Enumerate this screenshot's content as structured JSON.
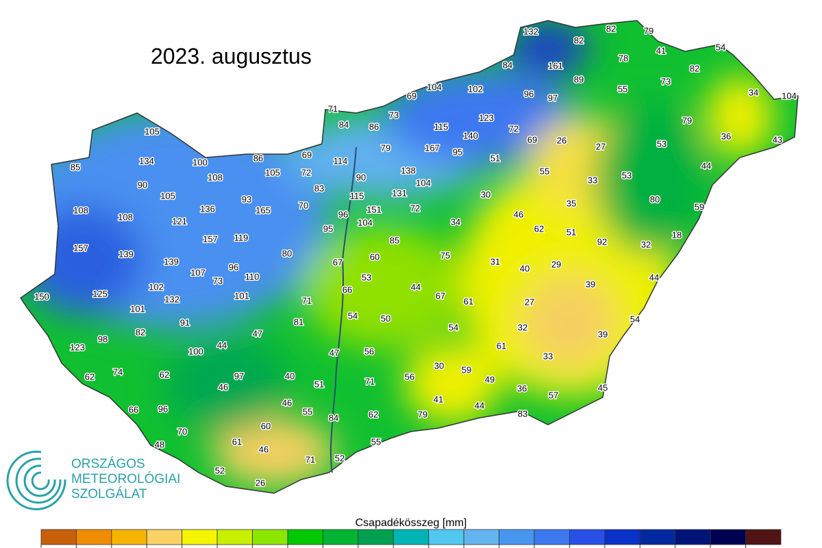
{
  "title": "2023. augusztus",
  "stations": [
    132,
    82,
    79,
    82,
    54,
    41,
    78,
    84,
    161,
    82,
    104,
    102,
    89,
    96,
    97,
    55,
    73,
    34,
    104,
    69,
    71,
    73,
    123,
    84,
    86,
    115,
    140,
    72,
    79,
    105,
    69,
    26,
    27,
    53,
    36,
    43,
    79,
    167,
    95,
    51,
    134,
    100,
    86,
    69,
    114,
    85,
    55,
    53,
    44,
    108,
    105,
    72,
    90,
    138,
    104,
    33,
    90,
    83,
    131,
    30,
    80,
    105,
    93,
    115,
    35,
    59,
    108,
    136,
    165,
    70,
    151,
    72,
    108,
    121,
    96,
    104,
    34,
    46,
    62,
    51,
    92,
    18,
    157,
    157,
    119,
    95,
    85,
    32,
    139,
    80,
    60,
    75,
    31,
    40,
    29,
    139,
    96,
    67,
    107,
    73,
    110,
    53,
    44,
    39,
    44,
    102,
    125,
    66,
    67,
    61,
    27,
    150,
    132,
    101,
    71,
    101,
    54,
    50,
    54,
    32,
    54,
    91,
    81,
    82,
    47,
    39,
    98,
    123,
    100,
    44,
    47,
    56,
    61,
    33,
    30,
    59,
    74,
    62,
    62,
    97,
    40,
    71,
    56,
    49,
    46,
    51,
    36,
    57,
    45,
    41,
    46,
    55,
    66,
    96,
    84,
    62,
    79,
    44,
    83,
    60,
    70,
    61,
    55,
    48,
    46,
    71,
    52,
    52,
    26
  ],
  "legend": {
    "title": "Csapadékösszeg [mm]",
    "colors": [
      "#c8600a",
      "#f08c00",
      "#f5b400",
      "#fad264",
      "#f5f500",
      "#c8f000",
      "#8ce600",
      "#00c800",
      "#00b432",
      "#00a050",
      "#00b4b4",
      "#50c8f0",
      "#64b4f0",
      "#4696f0",
      "#3c78f0",
      "#2850e6",
      "#0a32c8",
      "#0028a0",
      "#001478",
      "#000050",
      "#501414"
    ]
  },
  "logo": {
    "lines": [
      "ORSZÁGOS",
      "METEOROLÓGIAI",
      "SZOLGÁLAT"
    ]
  }
}
